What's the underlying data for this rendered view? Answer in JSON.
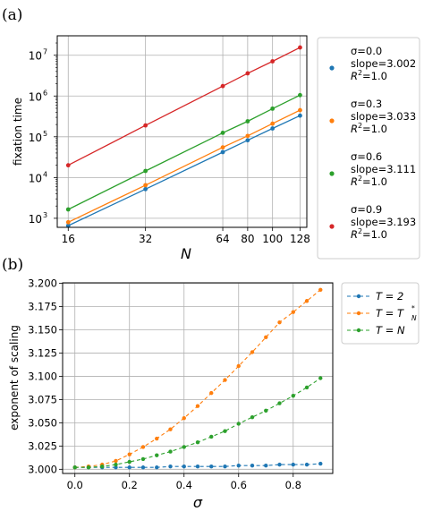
{
  "chart_data": [
    {
      "panel": "(a)",
      "type": "line",
      "xscale": "log",
      "yscale": "log",
      "xlabel": "N",
      "ylabel": "fixation time",
      "xticks": [
        16,
        32,
        64,
        80,
        100,
        128
      ],
      "xlim": [
        14.5,
        136
      ],
      "ylim": [
        600,
        30000000
      ],
      "yticks": [
        {
          "value": 1000,
          "base": "10",
          "exp": "3"
        },
        {
          "value": 10000,
          "base": "10",
          "exp": "4"
        },
        {
          "value": 100000,
          "base": "10",
          "exp": "5"
        },
        {
          "value": 1000000,
          "base": "10",
          "exp": "6"
        },
        {
          "value": 10000000,
          "base": "10",
          "exp": "7"
        }
      ],
      "grid": true,
      "legend_position": "outside-right",
      "x": [
        16,
        32,
        64,
        80,
        100,
        128
      ],
      "series": [
        {
          "color": "#1f77b4",
          "values": [
            660,
            5200,
            42000,
            82000,
            160000,
            330000
          ],
          "legend": [
            "σ=0.0",
            "slope=3.002",
            "R",
            "2",
            "=1.0"
          ]
        },
        {
          "color": "#ff7f0e",
          "values": [
            800,
            6500,
            55000,
            105000,
            210000,
            450000
          ],
          "legend": [
            "σ=0.3",
            "slope=3.033",
            "R",
            "2",
            "=1.0"
          ]
        },
        {
          "color": "#2ca02c",
          "values": [
            1650,
            14500,
            125000,
            240000,
            490000,
            1050000
          ],
          "legend": [
            "σ=0.6",
            "slope=3.111",
            "R",
            "2",
            "=1.0"
          ]
        },
        {
          "color": "#d62728",
          "values": [
            20000,
            190000,
            1750000,
            3600000,
            7100000,
            15500000
          ],
          "legend": [
            "σ=0.9",
            "slope=3.193",
            "R",
            "2",
            "=1.0"
          ]
        }
      ]
    },
    {
      "panel": "(b)",
      "type": "line",
      "xlabel": "σ",
      "ylabel": "exponent of scaling",
      "xlim": [
        -0.045,
        0.945
      ],
      "ylim": [
        2.9955,
        3.2005
      ],
      "xticks": [
        0.0,
        0.2,
        0.4,
        0.6,
        0.8
      ],
      "xtick_labels": [
        "0.0",
        "0.2",
        "0.4",
        "0.6",
        "0.8"
      ],
      "yticks": [
        3.0,
        3.025,
        3.05,
        3.075,
        3.1,
        3.125,
        3.15,
        3.175,
        3.2
      ],
      "ytick_labels": [
        "3.000",
        "3.025",
        "3.050",
        "3.075",
        "3.100",
        "3.125",
        "3.150",
        "3.175",
        "3.200"
      ],
      "grid": true,
      "legend_position": "outside-right",
      "x": [
        0.0,
        0.05,
        0.1,
        0.15,
        0.2,
        0.25,
        0.3,
        0.35,
        0.4,
        0.45,
        0.5,
        0.55,
        0.6,
        0.65,
        0.7,
        0.75,
        0.8,
        0.85,
        0.9
      ],
      "series": [
        {
          "color": "#1f77b4",
          "legend": [
            "T = 2",
            "",
            ""
          ],
          "values": [
            3.002,
            3.002,
            3.002,
            3.002,
            3.002,
            3.002,
            3.002,
            3.003,
            3.003,
            3.003,
            3.003,
            3.003,
            3.004,
            3.004,
            3.004,
            3.005,
            3.005,
            3.005,
            3.006
          ]
        },
        {
          "color": "#ff7f0e",
          "legend": [
            "T = T",
            "N",
            "*"
          ],
          "values": [
            3.002,
            3.003,
            3.005,
            3.009,
            3.016,
            3.024,
            3.033,
            3.043,
            3.055,
            3.068,
            3.082,
            3.096,
            3.111,
            3.126,
            3.142,
            3.158,
            3.169,
            3.181,
            3.193
          ]
        },
        {
          "color": "#2ca02c",
          "legend": [
            "T = N",
            "",
            ""
          ],
          "values": [
            3.002,
            3.002,
            3.003,
            3.005,
            3.008,
            3.011,
            3.015,
            3.019,
            3.024,
            3.029,
            3.035,
            3.041,
            3.049,
            3.056,
            3.063,
            3.071,
            3.079,
            3.088,
            3.098
          ]
        }
      ]
    }
  ]
}
